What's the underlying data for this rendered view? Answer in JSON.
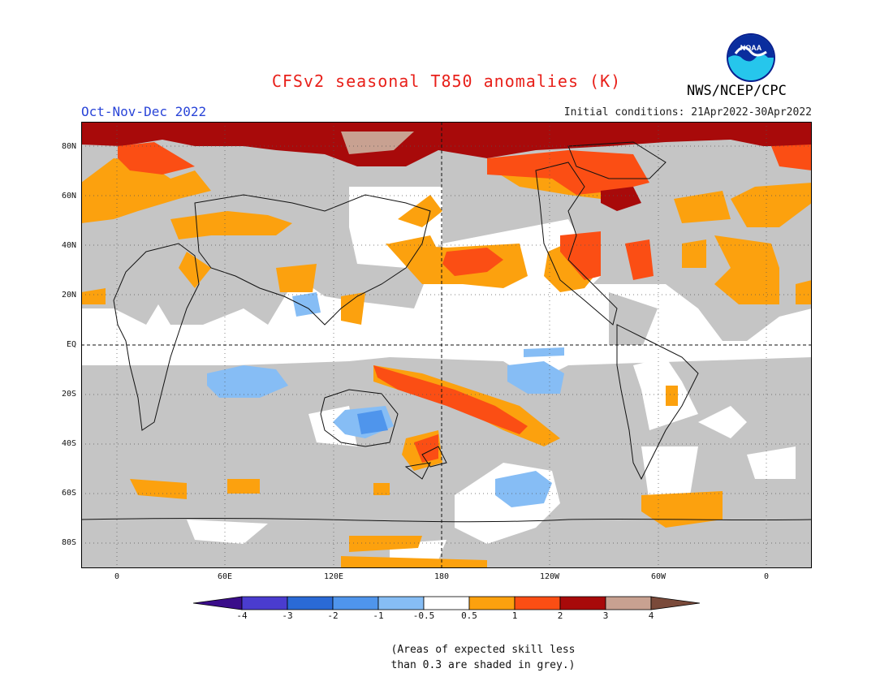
{
  "title": "CFSv2 seasonal T850 anomalies (K)",
  "season": "Oct-Nov-Dec 2022",
  "initial_conditions": "Initial conditions: 21Apr2022-30Apr2022",
  "agency": "NWS/NCEP/CPC",
  "logo_text": "NOAA",
  "lat_labels": [
    "80N",
    "60N",
    "40N",
    "20N",
    "EQ",
    "20S",
    "40S",
    "60S",
    "80S"
  ],
  "lon_labels": [
    "0",
    "60E",
    "120E",
    "180",
    "120W",
    "60W",
    "0"
  ],
  "colorbar": {
    "ticks": [
      "-4",
      "-3",
      "-2",
      "-1",
      "-0.5",
      "0.5",
      "1",
      "2",
      "3",
      "4"
    ],
    "colors": [
      "#3a0d8a",
      "#4a3ccf",
      "#2a6ad6",
      "#4f95ec",
      "#86bdf5",
      "#ffffff",
      "#fca10e",
      "#fb4e14",
      "#a80a0a",
      "#c8a191",
      "#7a4a3a"
    ]
  },
  "legend_note_line1": "(Areas of expected skill less",
  "legend_note_line2": "than 0.3 are shaded in grey.)",
  "colors": {
    "skill_grey": "#c5c5c5",
    "title": "#e8201a",
    "season": "#2a45d8"
  }
}
